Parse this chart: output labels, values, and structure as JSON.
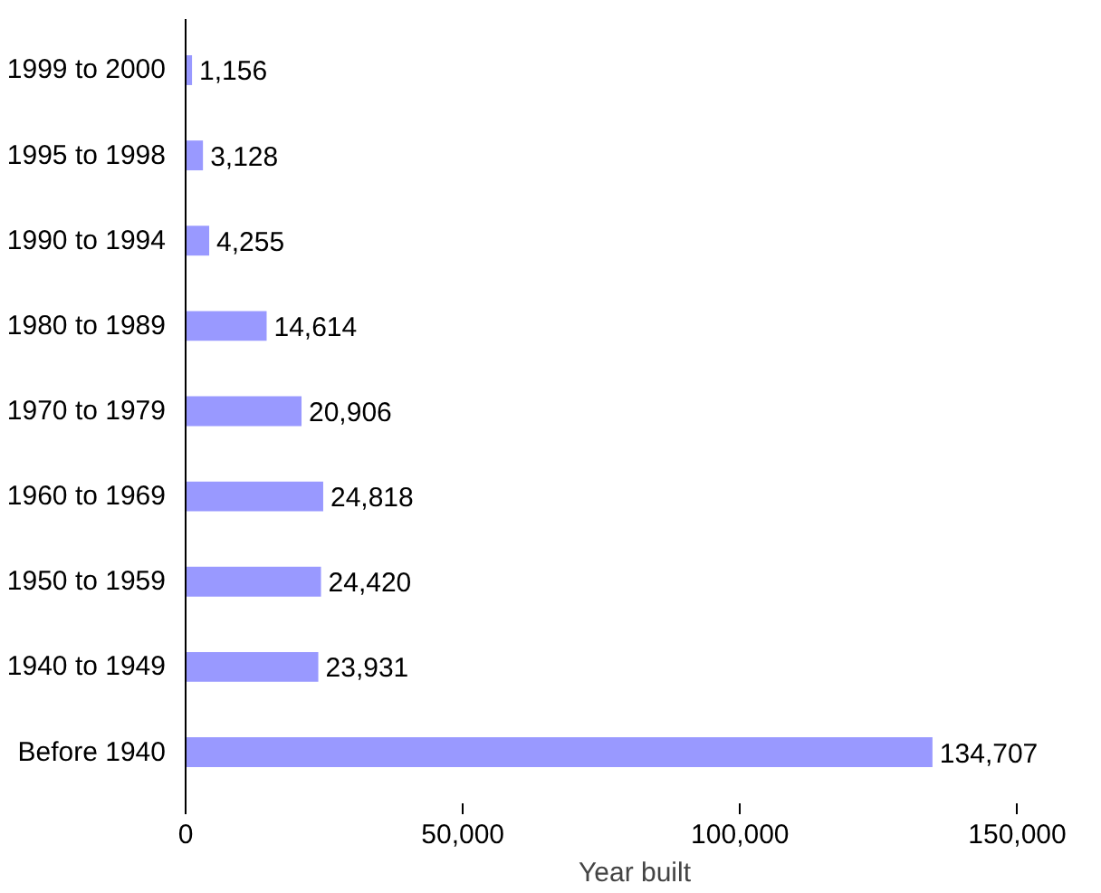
{
  "chart_data": {
    "type": "bar",
    "orientation": "horizontal",
    "xlabel": "Year built",
    "categories": [
      "1999 to 2000",
      "1995 to 1998",
      "1990 to 1994",
      "1980 to 1989",
      "1970 to 1979",
      "1960 to 1969",
      "1950 to 1959",
      "1940 to 1949",
      "Before 1940"
    ],
    "values": [
      1156,
      3128,
      4255,
      14614,
      20906,
      24818,
      24420,
      23931,
      134707
    ],
    "value_labels": [
      "1,156",
      "3,128",
      "4,255",
      "14,614",
      "20,906",
      "24,818",
      "24,420",
      "23,931",
      "134,707"
    ],
    "color": "#9999ff",
    "xlim": [
      0,
      150000
    ],
    "xticks": [
      {
        "value": 0,
        "label": "0"
      },
      {
        "value": 50000,
        "label": "50,000"
      },
      {
        "value": 100000,
        "label": "100,000"
      },
      {
        "value": 150000,
        "label": "150,000"
      }
    ],
    "grid": false
  }
}
